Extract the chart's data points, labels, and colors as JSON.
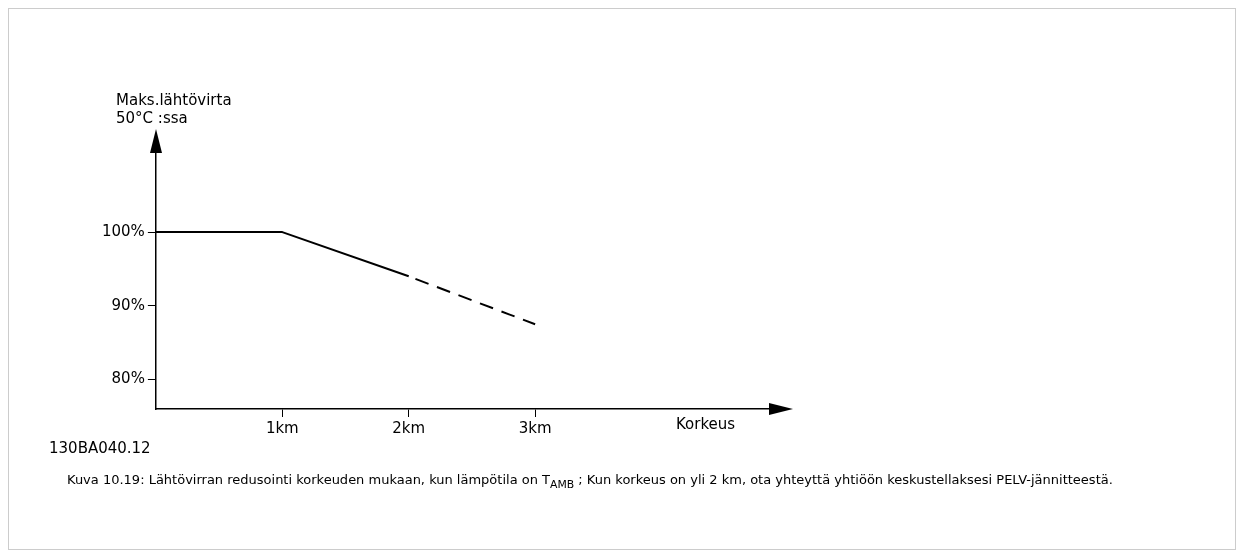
{
  "chart_data": {
    "type": "line",
    "ylabel": "Maks.lähtövirta\n50°C  :ssa",
    "xlabel": "Korkeus",
    "x": [
      0,
      1,
      2,
      3
    ],
    "series": [
      {
        "color": "#000000",
        "line_style": "solid",
        "values": [
          100,
          100,
          94,
          null
        ]
      },
      {
        "color": "#000000",
        "line_style": "dashed",
        "values": [
          null,
          null,
          94,
          87.5
        ]
      }
    ],
    "xlim": [
      0,
      4.85
    ],
    "xticks": [
      {
        "value": 1,
        "label": "1km"
      },
      {
        "value": 2,
        "label": "2km"
      },
      {
        "value": 3,
        "label": "3km"
      }
    ],
    "ylim": [
      76,
      111
    ],
    "yticks": [
      {
        "value": 80,
        "label": "80%"
      },
      {
        "value": 90,
        "label": "90%"
      },
      {
        "value": 100,
        "label": "100%"
      }
    ],
    "grid": false,
    "legend": false,
    "marker": "none",
    "annotations": [
      "130BA040.12",
      "Kuva 10.19: Lähtövirran redusointi korkeuden mukaan, kun lämpötila on T$_{AMB}$ ; Kun korkeus on yli 2 km, ota yhteyttä yhtiöön keskustellaksesi PELV-jännitteestä."
    ]
  }
}
